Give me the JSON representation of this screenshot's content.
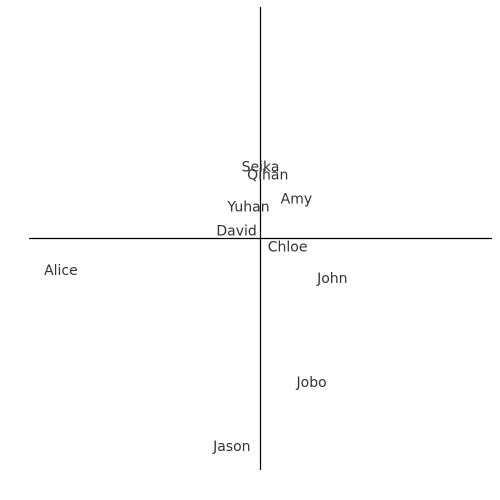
{
  "chart_data": {
    "type": "scatter",
    "title": "",
    "xlabel": "",
    "ylabel": "",
    "xlim": [
      -29,
      29
    ],
    "ylim": [
      -29,
      29
    ],
    "grid": false,
    "legend": "none",
    "axis_color": "#000000",
    "label_color": "#333333",
    "points": [
      {
        "label": "Seika",
        "x": 0,
        "y": 8.9
      },
      {
        "label": "Qihan",
        "x": 0.9,
        "y": 7.9
      },
      {
        "label": "Amy",
        "x": 4.5,
        "y": 4.9
      },
      {
        "label": "Yuhan",
        "x": -1.5,
        "y": 3.9
      },
      {
        "label": "David",
        "x": -3.0,
        "y": 0.9
      },
      {
        "label": "Chloe",
        "x": 3.4,
        "y": -1.1
      },
      {
        "label": "Alice",
        "x": -25.0,
        "y": -4.1
      },
      {
        "label": "John",
        "x": 9.0,
        "y": -5.1
      },
      {
        "label": "Jobo",
        "x": 6.4,
        "y": -18.1
      },
      {
        "label": "Jason",
        "x": -3.6,
        "y": -26.1
      }
    ]
  }
}
